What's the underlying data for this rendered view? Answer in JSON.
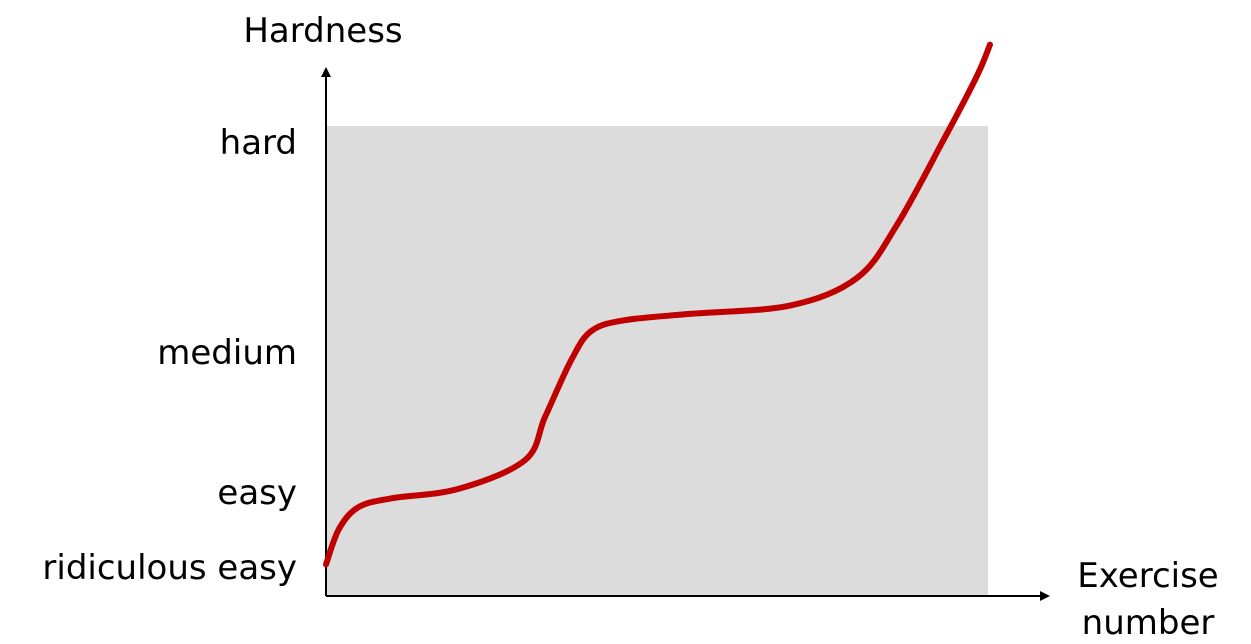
{
  "chart_data": {
    "type": "line",
    "xlabel": [
      "Exercise",
      "number"
    ],
    "ylabel": "Hardness",
    "y_tick_labels": [
      "ridiculous easy",
      "easy",
      "medium",
      "hard"
    ],
    "y_tick_values": [
      0,
      1,
      2,
      3
    ],
    "ylim": [
      -0.05,
      3.5
    ],
    "xlim": [
      0,
      1
    ],
    "x_tick_labels": [],
    "grid": false,
    "legend": "none",
    "shaded_region": {
      "x": [
        0,
        1
      ],
      "y": [
        -0.05,
        3
      ],
      "color": "#dcdcdc"
    },
    "series": [
      {
        "color": "#c00000",
        "x": [
          0,
          0.02,
          0.05,
          0.1,
          0.2,
          0.3,
          0.33,
          0.37,
          0.4,
          0.45,
          0.55,
          0.7,
          0.8,
          0.86,
          0.93,
          0.98,
          1.0
        ],
        "y": [
          0.05,
          0.55,
          0.85,
          0.97,
          1.05,
          1.25,
          1.55,
          1.95,
          2.1,
          2.15,
          2.18,
          2.22,
          2.35,
          2.6,
          3.0,
          3.3,
          3.45
        ]
      }
    ]
  }
}
